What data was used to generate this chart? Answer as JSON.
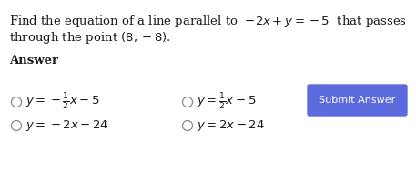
{
  "background_color": "#ffffff",
  "question_line1": "Find the equation of a line parallel to  $-2x + y = -5$  that passes",
  "question_line2": "through the point $(8, -8)$.",
  "answer_label": "Answer",
  "options": [
    {
      "text": "$y = -\\frac{1}{2}x - 5$",
      "col": 0
    },
    {
      "text": "$y = \\frac{1}{2}x - 5$",
      "col": 1
    },
    {
      "text": "$y = -2x - 24$",
      "col": 0
    },
    {
      "text": "$y = 2x - 24$",
      "col": 1
    }
  ],
  "button_color": "#5b6bde",
  "button_text": "Submit Answer",
  "button_text_color": "#ffffff",
  "text_color": "#1a1a1a",
  "radio_color": "#888888"
}
